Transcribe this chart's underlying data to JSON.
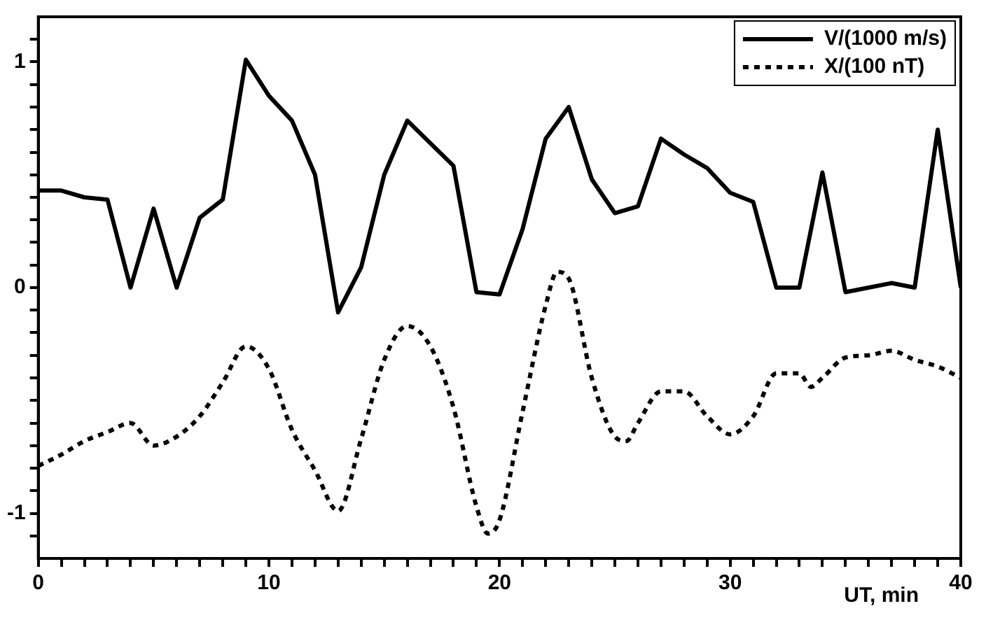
{
  "chart_data": {
    "type": "line",
    "xlabel": "UT, min",
    "xlim": [
      0,
      40
    ],
    "xticks": [
      0,
      {
        "value": 1,
        "label": null
      },
      {
        "value": 2,
        "label": null
      },
      {
        "value": 3,
        "label": null
      },
      {
        "value": 4,
        "label": null
      },
      {
        "value": 5,
        "label": null
      },
      {
        "value": 6,
        "label": null
      },
      {
        "value": 7,
        "label": null
      },
      {
        "value": 8,
        "label": null
      },
      {
        "value": 9,
        "label": null
      },
      10,
      {
        "value": 11,
        "label": null
      },
      {
        "value": 12,
        "label": null
      },
      {
        "value": 13,
        "label": null
      },
      {
        "value": 14,
        "label": null
      },
      {
        "value": 15,
        "label": null
      },
      {
        "value": 16,
        "label": null
      },
      {
        "value": 17,
        "label": null
      },
      {
        "value": 18,
        "label": null
      },
      {
        "value": 19,
        "label": null
      },
      20,
      {
        "value": 21,
        "label": null
      },
      {
        "value": 22,
        "label": null
      },
      {
        "value": 23,
        "label": null
      },
      {
        "value": 24,
        "label": null
      },
      {
        "value": 25,
        "label": null
      },
      {
        "value": 26,
        "label": null
      },
      {
        "value": 27,
        "label": null
      },
      {
        "value": 28,
        "label": null
      },
      {
        "value": 29,
        "label": null
      },
      30,
      {
        "value": 31,
        "label": null
      },
      {
        "value": 32,
        "label": null
      },
      {
        "value": 33,
        "label": null
      },
      {
        "value": 34,
        "label": null
      },
      {
        "value": 35,
        "label": null
      },
      {
        "value": 36,
        "label": null
      },
      {
        "value": 37,
        "label": null
      },
      {
        "value": 38,
        "label": null
      },
      {
        "value": 39,
        "label": null
      },
      40
    ],
    "ylim": [
      -1.2,
      1.2
    ],
    "yticks": [
      {
        "value": -1.1,
        "label": null
      },
      -1,
      {
        "value": -0.9,
        "label": null
      },
      {
        "value": -0.8,
        "label": null
      },
      {
        "value": -0.7,
        "label": null
      },
      {
        "value": -0.6,
        "label": null
      },
      {
        "value": -0.5,
        "label": null
      },
      {
        "value": -0.4,
        "label": null
      },
      {
        "value": -0.3,
        "label": null
      },
      {
        "value": -0.2,
        "label": null
      },
      {
        "value": -0.1,
        "label": null
      },
      0,
      {
        "value": 0.1,
        "label": null
      },
      {
        "value": 0.2,
        "label": null
      },
      {
        "value": 0.3,
        "label": null
      },
      {
        "value": 0.4,
        "label": null
      },
      {
        "value": 0.5,
        "label": null
      },
      {
        "value": 0.6,
        "label": null
      },
      {
        "value": 0.7,
        "label": null
      },
      {
        "value": 0.8,
        "label": null
      },
      {
        "value": 0.9,
        "label": null
      },
      1,
      {
        "value": 1.1,
        "label": null
      }
    ],
    "grid": false,
    "legend": "top right",
    "marker": "none",
    "series": [
      {
        "name": "V/(1000 m/s)",
        "color": "#000000",
        "line_style": "solid",
        "x": [
          0,
          1,
          2,
          3,
          4,
          5,
          6,
          7,
          8,
          9,
          10,
          11,
          12,
          13,
          14,
          15,
          16,
          17,
          18,
          19,
          20,
          21,
          22,
          23,
          24,
          25,
          26,
          27,
          28,
          29,
          30,
          31,
          32,
          33,
          34,
          35,
          36,
          37,
          38,
          39,
          40
        ],
        "values": [
          0.43,
          0.43,
          0.4,
          0.39,
          0.0,
          0.35,
          0.0,
          0.31,
          0.39,
          1.01,
          0.85,
          0.74,
          0.5,
          -0.11,
          0.09,
          0.5,
          0.74,
          0.64,
          0.54,
          -0.02,
          -0.03,
          0.26,
          0.66,
          0.8,
          0.48,
          0.33,
          0.36,
          0.66,
          0.59,
          0.53,
          0.42,
          0.38,
          0.0,
          0.0,
          0.51,
          -0.02,
          0.0,
          0.02,
          0.0,
          0.7,
          0.0
        ]
      },
      {
        "name": "X/(100 nT)",
        "color": "#000000",
        "line_style": "dotted",
        "x": [
          0,
          1,
          2,
          3,
          4,
          5,
          6,
          7,
          8,
          9,
          10,
          11,
          12,
          13,
          14,
          15,
          16,
          17,
          18,
          19,
          19.5,
          20,
          21,
          22,
          22.5,
          23,
          24,
          25,
          25.5,
          26,
          27,
          28,
          29,
          30,
          31,
          32,
          33,
          33.5,
          34,
          35,
          36,
          37,
          38,
          39,
          40
        ],
        "values": [
          -0.79,
          -0.74,
          -0.68,
          -0.64,
          -0.6,
          -0.7,
          -0.66,
          -0.57,
          -0.42,
          -0.26,
          -0.36,
          -0.63,
          -0.81,
          -0.99,
          -0.67,
          -0.32,
          -0.17,
          -0.26,
          -0.53,
          -0.97,
          -1.09,
          -1.03,
          -0.55,
          -0.08,
          0.07,
          0.04,
          -0.4,
          -0.66,
          -0.68,
          -0.6,
          -0.46,
          -0.46,
          -0.57,
          -0.65,
          -0.57,
          -0.38,
          -0.38,
          -0.44,
          -0.4,
          -0.31,
          -0.3,
          -0.28,
          -0.32,
          -0.35,
          -0.4
        ]
      }
    ]
  }
}
